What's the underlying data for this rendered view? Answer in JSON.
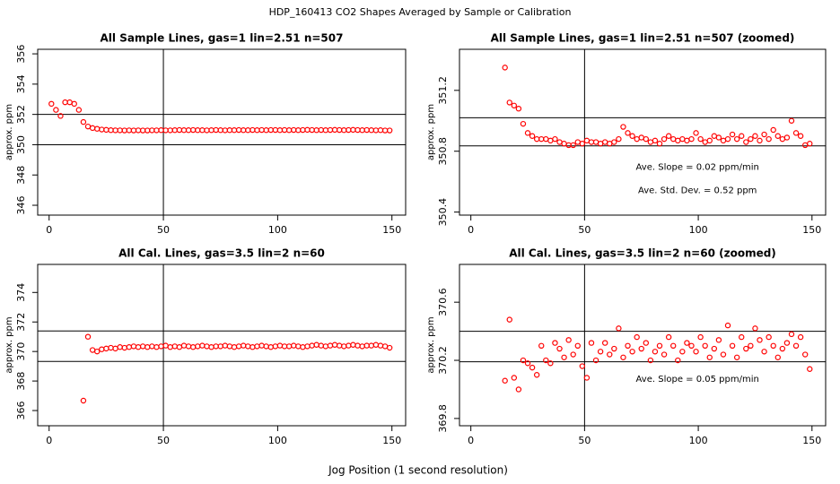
{
  "title": "HDP_160413  CO2 Shapes Averaged by Sample or Calibration",
  "xlabel": "Jog Position (1 second resolution)",
  "chart_data": [
    {
      "type": "scatter",
      "title": "All Sample Lines, gas=1 lin=2.51 n=507",
      "ylabel": "approx. ppm",
      "color": "#ff0000",
      "xlim": [
        -5,
        156
      ],
      "ylim": [
        345.35,
        356.3
      ],
      "xticks": [
        0,
        50,
        100,
        150
      ],
      "yticks": [
        346,
        348,
        350,
        352,
        354,
        356
      ],
      "hlines": [
        350,
        352
      ],
      "vlines": [
        50
      ],
      "annotations": [],
      "x": [
        1,
        3,
        5,
        7,
        9,
        11,
        13,
        15,
        17,
        19,
        21,
        23,
        25,
        27,
        29,
        31,
        33,
        35,
        37,
        39,
        41,
        43,
        45,
        47,
        49,
        51,
        53,
        55,
        57,
        59,
        61,
        63,
        65,
        67,
        69,
        71,
        73,
        75,
        77,
        79,
        81,
        83,
        85,
        87,
        89,
        91,
        93,
        95,
        97,
        99,
        101,
        103,
        105,
        107,
        109,
        111,
        113,
        115,
        117,
        119,
        121,
        123,
        125,
        127,
        129,
        131,
        133,
        135,
        137,
        139,
        141,
        143,
        145,
        147,
        149
      ],
      "values": [
        352.7,
        352.3,
        351.9,
        352.8,
        352.8,
        352.7,
        352.3,
        351.5,
        351.2,
        351.1,
        351.05,
        351.0,
        350.98,
        350.96,
        350.95,
        350.95,
        350.94,
        350.95,
        350.94,
        350.95,
        350.94,
        350.94,
        350.95,
        350.95,
        350.96,
        350.95,
        350.95,
        350.96,
        350.97,
        350.96,
        350.96,
        350.97,
        350.96,
        350.96,
        350.95,
        350.96,
        350.97,
        350.96,
        350.95,
        350.96,
        350.96,
        350.97,
        350.96,
        350.96,
        350.97,
        350.96,
        350.97,
        350.96,
        350.97,
        350.97,
        350.96,
        350.97,
        350.96,
        350.97,
        350.96,
        350.97,
        350.98,
        350.97,
        350.96,
        350.97,
        350.96,
        350.97,
        350.98,
        350.97,
        350.96,
        350.97,
        350.98,
        350.97,
        350.96,
        350.97,
        350.96,
        350.95,
        350.96,
        350.94,
        350.94
      ]
    },
    {
      "type": "scatter",
      "title": "All Sample Lines, gas=1 lin=2.51 n=507 (zoomed)",
      "ylabel": "approx. ppm",
      "color": "#ff0000",
      "xlim": [
        -5,
        156
      ],
      "ylim": [
        350.38,
        351.47
      ],
      "xticks": [
        0,
        50,
        100,
        150
      ],
      "yticks": [
        350.4,
        350.8,
        351.2
      ],
      "hlines": [
        350.835,
        351.02
      ],
      "vlines": [
        50
      ],
      "annotations": [
        "Ave. Slope =  0.02  ppm/min",
        "Ave. Std. Dev. =  0.52  ppm"
      ],
      "x": [
        15,
        17,
        19,
        21,
        23,
        25,
        27,
        29,
        31,
        33,
        35,
        37,
        39,
        41,
        43,
        45,
        47,
        49,
        51,
        53,
        55,
        57,
        59,
        61,
        63,
        65,
        67,
        69,
        71,
        73,
        75,
        77,
        79,
        81,
        83,
        85,
        87,
        89,
        91,
        93,
        95,
        97,
        99,
        101,
        103,
        105,
        107,
        109,
        111,
        113,
        115,
        117,
        119,
        121,
        123,
        125,
        127,
        129,
        131,
        133,
        135,
        137,
        139,
        141,
        143,
        145,
        147,
        149
      ],
      "values": [
        351.35,
        351.12,
        351.1,
        351.08,
        350.98,
        350.92,
        350.9,
        350.88,
        350.88,
        350.88,
        350.87,
        350.88,
        350.86,
        350.85,
        350.84,
        350.84,
        350.86,
        350.85,
        350.87,
        350.86,
        350.86,
        350.85,
        350.86,
        350.85,
        350.86,
        350.88,
        350.96,
        350.92,
        350.9,
        350.88,
        350.89,
        350.88,
        350.86,
        350.87,
        350.85,
        350.88,
        350.9,
        350.88,
        350.87,
        350.88,
        350.87,
        350.88,
        350.92,
        350.88,
        350.86,
        350.87,
        350.9,
        350.89,
        350.87,
        350.88,
        350.91,
        350.88,
        350.9,
        350.86,
        350.88,
        350.9,
        350.87,
        350.91,
        350.88,
        350.94,
        350.9,
        350.88,
        350.89,
        351.0,
        350.92,
        350.9,
        350.84,
        350.85
      ]
    },
    {
      "type": "scatter",
      "title": "All Cal. Lines, gas=3.5 lin=2 n=60",
      "ylabel": "approx. ppm",
      "color": "#ff0000",
      "xlim": [
        -5,
        156
      ],
      "ylim": [
        364.97,
        375.9
      ],
      "xticks": [
        0,
        50,
        100,
        150
      ],
      "yticks": [
        366,
        368,
        370,
        372,
        374
      ],
      "hlines": [
        369.33,
        371.39
      ],
      "vlines": [
        50
      ],
      "annotations": [],
      "x": [
        15,
        17,
        19,
        21,
        23,
        25,
        27,
        29,
        31,
        33,
        35,
        37,
        39,
        41,
        43,
        45,
        47,
        49,
        51,
        53,
        55,
        57,
        59,
        61,
        63,
        65,
        67,
        69,
        71,
        73,
        75,
        77,
        79,
        81,
        83,
        85,
        87,
        89,
        91,
        93,
        95,
        97,
        99,
        101,
        103,
        105,
        107,
        109,
        111,
        113,
        115,
        117,
        119,
        121,
        123,
        125,
        127,
        129,
        131,
        133,
        135,
        137,
        139,
        141,
        143,
        145,
        147,
        149
      ],
      "values": [
        366.67,
        371.0,
        370.1,
        370.0,
        370.15,
        370.2,
        370.25,
        370.2,
        370.3,
        370.25,
        370.3,
        370.35,
        370.3,
        370.35,
        370.3,
        370.35,
        370.3,
        370.35,
        370.4,
        370.3,
        370.35,
        370.3,
        370.4,
        370.35,
        370.3,
        370.35,
        370.4,
        370.35,
        370.3,
        370.35,
        370.35,
        370.4,
        370.35,
        370.3,
        370.35,
        370.4,
        370.35,
        370.3,
        370.35,
        370.4,
        370.35,
        370.3,
        370.35,
        370.4,
        370.35,
        370.35,
        370.4,
        370.35,
        370.3,
        370.35,
        370.4,
        370.45,
        370.4,
        370.35,
        370.4,
        370.45,
        370.4,
        370.35,
        370.4,
        370.45,
        370.4,
        370.35,
        370.4,
        370.4,
        370.45,
        370.4,
        370.35,
        370.25
      ]
    },
    {
      "type": "scatter",
      "title": "All Cal. Lines, gas=3.5 lin=2 n=60 (zoomed)",
      "ylabel": "approx. ppm",
      "color": "#ff0000",
      "xlim": [
        -5,
        156
      ],
      "ylim": [
        369.75,
        370.86
      ],
      "xticks": [
        0,
        50,
        100,
        150
      ],
      "yticks": [
        369.8,
        370.2,
        370.6
      ],
      "hlines": [
        370.19,
        370.4
      ],
      "vlines": [
        50
      ],
      "annotations": [
        "Ave. Slope =  0.05  ppm/min"
      ],
      "x": [
        15,
        17,
        19,
        21,
        23,
        25,
        27,
        29,
        31,
        33,
        35,
        37,
        39,
        41,
        43,
        45,
        47,
        49,
        51,
        53,
        55,
        57,
        59,
        61,
        63,
        65,
        67,
        69,
        71,
        73,
        75,
        77,
        79,
        81,
        83,
        85,
        87,
        89,
        91,
        93,
        95,
        97,
        99,
        101,
        103,
        105,
        107,
        109,
        111,
        113,
        115,
        117,
        119,
        121,
        123,
        125,
        127,
        129,
        131,
        133,
        135,
        137,
        139,
        141,
        143,
        145,
        147,
        149
      ],
      "values": [
        370.06,
        370.48,
        370.08,
        370.0,
        370.2,
        370.18,
        370.15,
        370.1,
        370.3,
        370.2,
        370.18,
        370.32,
        370.28,
        370.22,
        370.34,
        370.24,
        370.3,
        370.16,
        370.08,
        370.32,
        370.2,
        370.26,
        370.32,
        370.24,
        370.28,
        370.42,
        370.22,
        370.3,
        370.26,
        370.36,
        370.28,
        370.32,
        370.2,
        370.26,
        370.3,
        370.24,
        370.36,
        370.3,
        370.2,
        370.26,
        370.32,
        370.3,
        370.26,
        370.36,
        370.3,
        370.22,
        370.28,
        370.34,
        370.24,
        370.44,
        370.3,
        370.22,
        370.36,
        370.28,
        370.3,
        370.42,
        370.34,
        370.26,
        370.36,
        370.3,
        370.22,
        370.28,
        370.32,
        370.38,
        370.3,
        370.36,
        370.24,
        370.14
      ]
    }
  ]
}
